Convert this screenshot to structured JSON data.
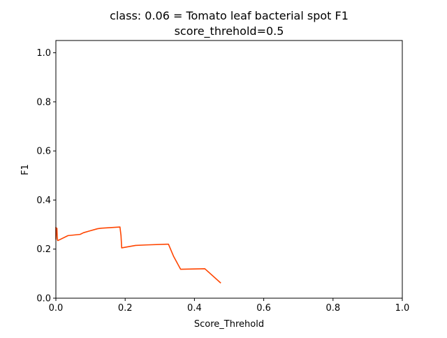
{
  "chart_data": {
    "type": "line",
    "title": [
      "class: 0.06 = Tomato leaf bacterial spot F1",
      "score_threhold=0.5"
    ],
    "xlabel": "Score_Threhold",
    "ylabel": "F1",
    "xlim": [
      0.0,
      1.0
    ],
    "ylim": [
      0.0,
      1.05
    ],
    "xticks": [
      0.0,
      0.2,
      0.4,
      0.6,
      0.8,
      1.0
    ],
    "xtick_labels": [
      "0.0",
      "0.2",
      "0.4",
      "0.6",
      "0.8",
      "1.0"
    ],
    "yticks": [
      0.0,
      0.2,
      0.4,
      0.6,
      0.8,
      1.0
    ],
    "ytick_labels": [
      "0.0",
      "0.2",
      "0.4",
      "0.6",
      "0.8",
      "1.0"
    ],
    "grid": false,
    "series": [
      {
        "color": "#ff4500",
        "x": [
          0.0,
          0.0,
          0.001,
          0.002,
          0.003,
          0.004,
          0.005,
          0.006,
          0.035,
          0.07,
          0.08,
          0.12,
          0.13,
          0.185,
          0.188,
          0.19,
          0.23,
          0.26,
          0.32,
          0.325,
          0.34,
          0.36,
          0.43,
          0.475
        ],
        "y": [
          0.288,
          0.24,
          0.285,
          0.27,
          0.285,
          0.25,
          0.235,
          0.235,
          0.255,
          0.26,
          0.267,
          0.283,
          0.285,
          0.29,
          0.255,
          0.205,
          0.215,
          0.217,
          0.22,
          0.22,
          0.17,
          0.118,
          0.12,
          0.063
        ]
      }
    ]
  }
}
